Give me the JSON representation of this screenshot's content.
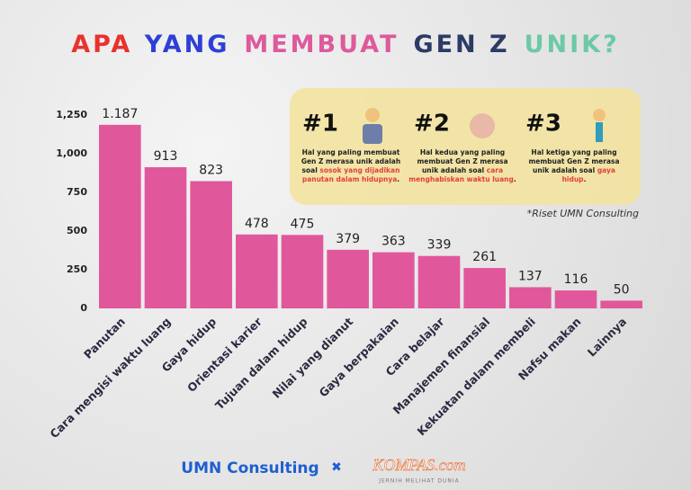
{
  "chart_data": {
    "type": "bar",
    "title": [
      {
        "text": "APA",
        "color": "#e8322e"
      },
      {
        "text": "YANG",
        "color": "#2e3fd6"
      },
      {
        "text": "MEMBUAT",
        "color": "#dd5a9b"
      },
      {
        "text": "GEN Z",
        "color": "#2c3b66"
      },
      {
        "text": "UNIK?",
        "color": "#6cc9a6"
      }
    ],
    "categories": [
      "Panutan",
      "Cara mengisi waktu luang",
      "Gaya hidup",
      "Orientasi karier",
      "Tujuan dalam hidup",
      "Nilai yang dianut",
      "Gaya berpakaian",
      "Cara belajar",
      "Manajemen finansial",
      "Kekuatan dalam membeli",
      "Nafsu makan",
      "Lainnya"
    ],
    "values": [
      1187,
      913,
      823,
      478,
      475,
      379,
      363,
      339,
      261,
      137,
      116,
      50
    ],
    "value_labels": [
      "1.187",
      "913",
      "823",
      "478",
      "475",
      "379",
      "363",
      "339",
      "261",
      "137",
      "116",
      "50"
    ],
    "color": "#e0579c",
    "ylim": [
      0,
      1250
    ],
    "yticks": [
      0,
      250,
      500,
      750,
      {
        "value": 1000,
        "label": "1,000"
      },
      {
        "value": 1250,
        "label": "1,250"
      }
    ],
    "grid": false,
    "highlights": [
      {
        "rank": "#1",
        "text": "Hal yang paling membuat Gen Z merasa unik adalah soal",
        "emphasis": "sosok yang dijadikan panutan dalam hidupnya",
        "end": "."
      },
      {
        "rank": "#2",
        "text": "Hal kedua yang paling membuat Gen Z merasa unik adalah soal",
        "emphasis": "cara menghabiskan waktu luang",
        "end": "."
      },
      {
        "rank": "#3",
        "text": "Hal ketiga yang paling membuat Gen Z merasa unik adalah soal",
        "emphasis": "gaya hidup",
        "end": "."
      }
    ],
    "note": "*Riset UMN Consulting",
    "footer": {
      "left": "UMN Consulting",
      "right": "KOMPAS.com",
      "tagline": "JERNIH MELIHAT DUNIA"
    }
  }
}
